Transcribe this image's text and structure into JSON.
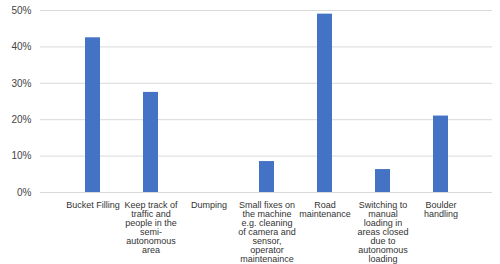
{
  "chart_data": {
    "type": "bar",
    "categories": [
      "Bucket Filling",
      "Keep track of traffic and people in the semi-autonomous area",
      "Dumping",
      "Small fixes on the machine e.g. cleaning of camera and sensor, operator maintenaince etc.",
      "Road maintenance",
      "Switching to manual loading in areas closed due to autonomous loading",
      "Boulder handling"
    ],
    "values": [
      42.5,
      27.5,
      0,
      8.5,
      49,
      6.3,
      21
    ],
    "color": "#4472c4",
    "ylim": [
      0,
      50
    ],
    "yticks": [
      {
        "value": 0,
        "label": "0%"
      },
      {
        "value": 10,
        "label": "10%"
      },
      {
        "value": 20,
        "label": "20%"
      },
      {
        "value": 30,
        "label": "30%"
      },
      {
        "value": 40,
        "label": "40%"
      },
      {
        "value": 50,
        "label": "50%"
      }
    ],
    "grid": true
  }
}
